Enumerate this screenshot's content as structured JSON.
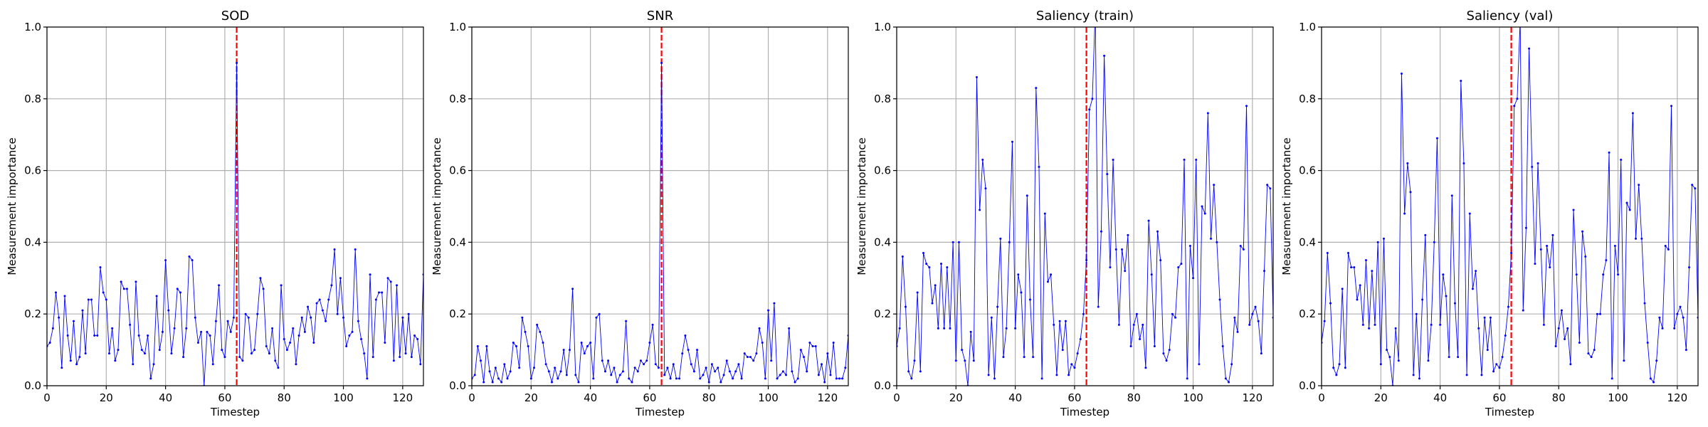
{
  "chart_data": [
    {
      "type": "line",
      "title": "SOD",
      "xlabel": "Timestep",
      "ylabel": "Measurement importance",
      "color": "blue",
      "grid": true,
      "vline": {
        "x": 64,
        "color": "red"
      },
      "xlim": [
        0,
        127
      ],
      "ylim": [
        0,
        1
      ],
      "xticks": [
        0,
        20,
        40,
        60,
        80,
        100,
        120
      ],
      "yticks": [
        {
          "value": 0,
          "label": "0.0"
        },
        {
          "value": 0.2,
          "label": "0.2"
        },
        {
          "value": 0.4,
          "label": "0.4"
        },
        {
          "value": 0.6,
          "label": "0.6"
        },
        {
          "value": 0.8,
          "label": "0.8"
        },
        {
          "value": 1,
          "label": "1.0"
        }
      ],
      "x": [
        0,
        1,
        2,
        3,
        4,
        5,
        6,
        7,
        8,
        9,
        10,
        11,
        12,
        13,
        14,
        15,
        16,
        17,
        18,
        19,
        20,
        21,
        22,
        23,
        24,
        25,
        26,
        27,
        28,
        29,
        30,
        31,
        32,
        33,
        34,
        35,
        36,
        37,
        38,
        39,
        40,
        41,
        42,
        43,
        44,
        45,
        46,
        47,
        48,
        49,
        50,
        51,
        52,
        53,
        54,
        55,
        56,
        57,
        58,
        59,
        60,
        61,
        62,
        63,
        64,
        65,
        66,
        67,
        68,
        69,
        70,
        71,
        72,
        73,
        74,
        75,
        76,
        77,
        78,
        79,
        80,
        81,
        82,
        83,
        84,
        85,
        86,
        87,
        88,
        89,
        90,
        91,
        92,
        93,
        94,
        95,
        96,
        97,
        98,
        99,
        100,
        101,
        102,
        103,
        104,
        105,
        106,
        107,
        108,
        109,
        110,
        111,
        112,
        113,
        114,
        115,
        116,
        117,
        118,
        119,
        120,
        121,
        122,
        123,
        124,
        125,
        126,
        127
      ],
      "values": [
        0.11,
        0.12,
        0.16,
        0.26,
        0.19,
        0.05,
        0.25,
        0.14,
        0.07,
        0.18,
        0.06,
        0.08,
        0.21,
        0.09,
        0.24,
        0.24,
        0.14,
        0.14,
        0.33,
        0.26,
        0.24,
        0.09,
        0.16,
        0.07,
        0.1,
        0.29,
        0.27,
        0.27,
        0.17,
        0.06,
        0.29,
        0.14,
        0.1,
        0.09,
        0.14,
        0.02,
        0.06,
        0.25,
        0.1,
        0.15,
        0.35,
        0.21,
        0.09,
        0.16,
        0.27,
        0.26,
        0.08,
        0.16,
        0.36,
        0.35,
        0.19,
        0.12,
        0.15,
        0.0,
        0.15,
        0.14,
        0.06,
        0.18,
        0.28,
        0.1,
        0.08,
        0.18,
        0.15,
        0.19,
        0.9,
        0.08,
        0.07,
        0.2,
        0.19,
        0.09,
        0.1,
        0.2,
        0.3,
        0.27,
        0.11,
        0.09,
        0.16,
        0.07,
        0.05,
        0.28,
        0.13,
        0.1,
        0.12,
        0.16,
        0.06,
        0.14,
        0.19,
        0.15,
        0.22,
        0.19,
        0.12,
        0.23,
        0.24,
        0.21,
        0.18,
        0.24,
        0.28,
        0.38,
        0.2,
        0.3,
        0.19,
        0.11,
        0.14,
        0.15,
        0.38,
        0.18,
        0.13,
        0.09,
        0.02,
        0.31,
        0.08,
        0.24,
        0.26,
        0.26,
        0.12,
        0.3,
        0.29,
        0.07,
        0.28,
        0.08,
        0.19,
        0.09,
        0.2,
        0.08,
        0.14,
        0.13,
        0.06,
        0.31
      ]
    },
    {
      "type": "line",
      "title": "SNR",
      "xlabel": "Timestep",
      "ylabel": "Measurement importance",
      "color": "blue",
      "grid": true,
      "vline": {
        "x": 64,
        "color": "red"
      },
      "xlim": [
        0,
        127
      ],
      "ylim": [
        0,
        1
      ],
      "xticks": [
        0,
        20,
        40,
        60,
        80,
        100,
        120
      ],
      "yticks": [
        {
          "value": 0,
          "label": "0.0"
        },
        {
          "value": 0.2,
          "label": "0.2"
        },
        {
          "value": 0.4,
          "label": "0.4"
        },
        {
          "value": 0.6,
          "label": "0.6"
        },
        {
          "value": 0.8,
          "label": "0.8"
        },
        {
          "value": 1,
          "label": "1.0"
        }
      ],
      "x": [
        0,
        1,
        2,
        3,
        4,
        5,
        6,
        7,
        8,
        9,
        10,
        11,
        12,
        13,
        14,
        15,
        16,
        17,
        18,
        19,
        20,
        21,
        22,
        23,
        24,
        25,
        26,
        27,
        28,
        29,
        30,
        31,
        32,
        33,
        34,
        35,
        36,
        37,
        38,
        39,
        40,
        41,
        42,
        43,
        44,
        45,
        46,
        47,
        48,
        49,
        50,
        51,
        52,
        53,
        54,
        55,
        56,
        57,
        58,
        59,
        60,
        61,
        62,
        63,
        64,
        65,
        66,
        67,
        68,
        69,
        70,
        71,
        72,
        73,
        74,
        75,
        76,
        77,
        78,
        79,
        80,
        81,
        82,
        83,
        84,
        85,
        86,
        87,
        88,
        89,
        90,
        91,
        92,
        93,
        94,
        95,
        96,
        97,
        98,
        99,
        100,
        101,
        102,
        103,
        104,
        105,
        106,
        107,
        108,
        109,
        110,
        111,
        112,
        113,
        114,
        115,
        116,
        117,
        118,
        119,
        120,
        121,
        122,
        123,
        124,
        125,
        126,
        127
      ],
      "values": [
        0.02,
        0.03,
        0.11,
        0.07,
        0.01,
        0.11,
        0.04,
        0.01,
        0.05,
        0.02,
        0.01,
        0.06,
        0.02,
        0.04,
        0.12,
        0.11,
        0.05,
        0.19,
        0.15,
        0.11,
        0.02,
        0.05,
        0.17,
        0.15,
        0.12,
        0.06,
        0.04,
        0.01,
        0.05,
        0.02,
        0.04,
        0.1,
        0.03,
        0.1,
        0.27,
        0.03,
        0.01,
        0.12,
        0.09,
        0.11,
        0.12,
        0.02,
        0.19,
        0.2,
        0.07,
        0.04,
        0.07,
        0.03,
        0.05,
        0.01,
        0.03,
        0.04,
        0.18,
        0.02,
        0.01,
        0.05,
        0.04,
        0.07,
        0.06,
        0.07,
        0.12,
        0.17,
        0.06,
        0.05,
        0.9,
        0.03,
        0.05,
        0.02,
        0.06,
        0.02,
        0.02,
        0.09,
        0.14,
        0.1,
        0.06,
        0.04,
        0.1,
        0.02,
        0.03,
        0.05,
        0.01,
        0.06,
        0.04,
        0.05,
        0.01,
        0.03,
        0.07,
        0.04,
        0.02,
        0.04,
        0.06,
        0.02,
        0.09,
        0.08,
        0.08,
        0.07,
        0.09,
        0.16,
        0.12,
        0.02,
        0.21,
        0.07,
        0.23,
        0.02,
        0.03,
        0.04,
        0.03,
        0.16,
        0.04,
        0.01,
        0.02,
        0.1,
        0.08,
        0.04,
        0.12,
        0.11,
        0.11,
        0.03,
        0.06,
        0.01,
        0.09,
        0.03,
        0.12,
        0.02,
        0.02,
        0.02,
        0.05,
        0.14
      ]
    },
    {
      "type": "line",
      "title": "Saliency (train)",
      "xlabel": "Timestep",
      "ylabel": "Measurement importance",
      "color": "blue",
      "grid": true,
      "vline": {
        "x": 64,
        "color": "red"
      },
      "xlim": [
        0,
        127
      ],
      "ylim": [
        0,
        1
      ],
      "xticks": [
        0,
        20,
        40,
        60,
        80,
        100,
        120
      ],
      "yticks": [
        {
          "value": 0,
          "label": "0.0"
        },
        {
          "value": 0.2,
          "label": "0.2"
        },
        {
          "value": 0.4,
          "label": "0.4"
        },
        {
          "value": 0.6,
          "label": "0.6"
        },
        {
          "value": 0.8,
          "label": "0.8"
        },
        {
          "value": 1,
          "label": "1.0"
        }
      ],
      "x": [
        0,
        1,
        2,
        3,
        4,
        5,
        6,
        7,
        8,
        9,
        10,
        11,
        12,
        13,
        14,
        15,
        16,
        17,
        18,
        19,
        20,
        21,
        22,
        23,
        24,
        25,
        26,
        27,
        28,
        29,
        30,
        31,
        32,
        33,
        34,
        35,
        36,
        37,
        38,
        39,
        40,
        41,
        42,
        43,
        44,
        45,
        46,
        47,
        48,
        49,
        50,
        51,
        52,
        53,
        54,
        55,
        56,
        57,
        58,
        59,
        60,
        61,
        62,
        63,
        64,
        65,
        66,
        67,
        68,
        69,
        70,
        71,
        72,
        73,
        74,
        75,
        76,
        77,
        78,
        79,
        80,
        81,
        82,
        83,
        84,
        85,
        86,
        87,
        88,
        89,
        90,
        91,
        92,
        93,
        94,
        95,
        96,
        97,
        98,
        99,
        100,
        101,
        102,
        103,
        104,
        105,
        106,
        107,
        108,
        109,
        110,
        111,
        112,
        113,
        114,
        115,
        116,
        117,
        118,
        119,
        120,
        121,
        122,
        123,
        124,
        125,
        126,
        127
      ],
      "values": [
        0.11,
        0.16,
        0.36,
        0.22,
        0.04,
        0.02,
        0.07,
        0.26,
        0.04,
        0.37,
        0.34,
        0.33,
        0.23,
        0.28,
        0.16,
        0.34,
        0.16,
        0.33,
        0.16,
        0.4,
        0.07,
        0.4,
        0.1,
        0.07,
        0.0,
        0.15,
        0.07,
        0.86,
        0.49,
        0.63,
        0.55,
        0.03,
        0.19,
        0.02,
        0.22,
        0.41,
        0.08,
        0.16,
        0.4,
        0.68,
        0.16,
        0.31,
        0.26,
        0.08,
        0.53,
        0.24,
        0.08,
        0.83,
        0.61,
        0.02,
        0.48,
        0.29,
        0.31,
        0.17,
        0.03,
        0.18,
        0.1,
        0.18,
        0.03,
        0.06,
        0.05,
        0.09,
        0.13,
        0.2,
        0.35,
        0.77,
        0.8,
        1.05,
        0.22,
        0.43,
        0.92,
        0.59,
        0.33,
        0.63,
        0.38,
        0.17,
        0.38,
        0.32,
        0.42,
        0.11,
        0.17,
        0.2,
        0.13,
        0.17,
        0.05,
        0.46,
        0.31,
        0.11,
        0.43,
        0.35,
        0.09,
        0.07,
        0.1,
        0.2,
        0.19,
        0.33,
        0.34,
        0.63,
        0.02,
        0.39,
        0.3,
        0.63,
        0.06,
        0.5,
        0.48,
        0.76,
        0.41,
        0.56,
        0.4,
        0.24,
        0.11,
        0.02,
        0.01,
        0.06,
        0.19,
        0.15,
        0.39,
        0.38,
        0.78,
        0.17,
        0.2,
        0.22,
        0.18,
        0.09,
        0.32,
        0.56,
        0.55,
        0.19
      ]
    },
    {
      "type": "line",
      "title": "Saliency (val)",
      "xlabel": "Timestep",
      "ylabel": "Measurement importance",
      "color": "blue",
      "grid": true,
      "vline": {
        "x": 64,
        "color": "red"
      },
      "xlim": [
        0,
        127
      ],
      "ylim": [
        0,
        1
      ],
      "xticks": [
        0,
        20,
        40,
        60,
        80,
        100,
        120
      ],
      "yticks": [
        {
          "value": 0,
          "label": "0.0"
        },
        {
          "value": 0.2,
          "label": "0.2"
        },
        {
          "value": 0.4,
          "label": "0.4"
        },
        {
          "value": 0.6,
          "label": "0.6"
        },
        {
          "value": 0.8,
          "label": "0.8"
        },
        {
          "value": 1,
          "label": "1.0"
        }
      ],
      "x": [
        0,
        1,
        2,
        3,
        4,
        5,
        6,
        7,
        8,
        9,
        10,
        11,
        12,
        13,
        14,
        15,
        16,
        17,
        18,
        19,
        20,
        21,
        22,
        23,
        24,
        25,
        26,
        27,
        28,
        29,
        30,
        31,
        32,
        33,
        34,
        35,
        36,
        37,
        38,
        39,
        40,
        41,
        42,
        43,
        44,
        45,
        46,
        47,
        48,
        49,
        50,
        51,
        52,
        53,
        54,
        55,
        56,
        57,
        58,
        59,
        60,
        61,
        62,
        63,
        64,
        65,
        66,
        67,
        68,
        69,
        70,
        71,
        72,
        73,
        74,
        75,
        76,
        77,
        78,
        79,
        80,
        81,
        82,
        83,
        84,
        85,
        86,
        87,
        88,
        89,
        90,
        91,
        92,
        93,
        94,
        95,
        96,
        97,
        98,
        99,
        100,
        101,
        102,
        103,
        104,
        105,
        106,
        107,
        108,
        109,
        110,
        111,
        112,
        113,
        114,
        115,
        116,
        117,
        118,
        119,
        120,
        121,
        122,
        123,
        124,
        125,
        126,
        127
      ],
      "values": [
        0.12,
        0.18,
        0.37,
        0.23,
        0.05,
        0.03,
        0.06,
        0.27,
        0.05,
        0.37,
        0.33,
        0.33,
        0.24,
        0.28,
        0.17,
        0.35,
        0.16,
        0.32,
        0.17,
        0.4,
        0.06,
        0.41,
        0.1,
        0.08,
        0.0,
        0.16,
        0.07,
        0.87,
        0.48,
        0.62,
        0.54,
        0.03,
        0.2,
        0.02,
        0.24,
        0.42,
        0.07,
        0.17,
        0.4,
        0.69,
        0.17,
        0.31,
        0.25,
        0.08,
        0.53,
        0.23,
        0.08,
        0.85,
        0.62,
        0.03,
        0.48,
        0.27,
        0.32,
        0.16,
        0.03,
        0.19,
        0.1,
        0.19,
        0.04,
        0.06,
        0.05,
        0.08,
        0.14,
        0.22,
        0.37,
        0.78,
        0.8,
        1.02,
        0.21,
        0.44,
        0.94,
        0.61,
        0.34,
        0.62,
        0.38,
        0.17,
        0.39,
        0.33,
        0.42,
        0.11,
        0.16,
        0.21,
        0.13,
        0.16,
        0.06,
        0.49,
        0.31,
        0.12,
        0.43,
        0.36,
        0.09,
        0.08,
        0.1,
        0.2,
        0.2,
        0.31,
        0.35,
        0.65,
        0.02,
        0.39,
        0.31,
        0.63,
        0.07,
        0.51,
        0.49,
        0.76,
        0.41,
        0.56,
        0.41,
        0.23,
        0.12,
        0.02,
        0.01,
        0.07,
        0.19,
        0.16,
        0.39,
        0.38,
        0.78,
        0.16,
        0.2,
        0.22,
        0.19,
        0.1,
        0.33,
        0.56,
        0.55,
        0.19
      ]
    }
  ]
}
